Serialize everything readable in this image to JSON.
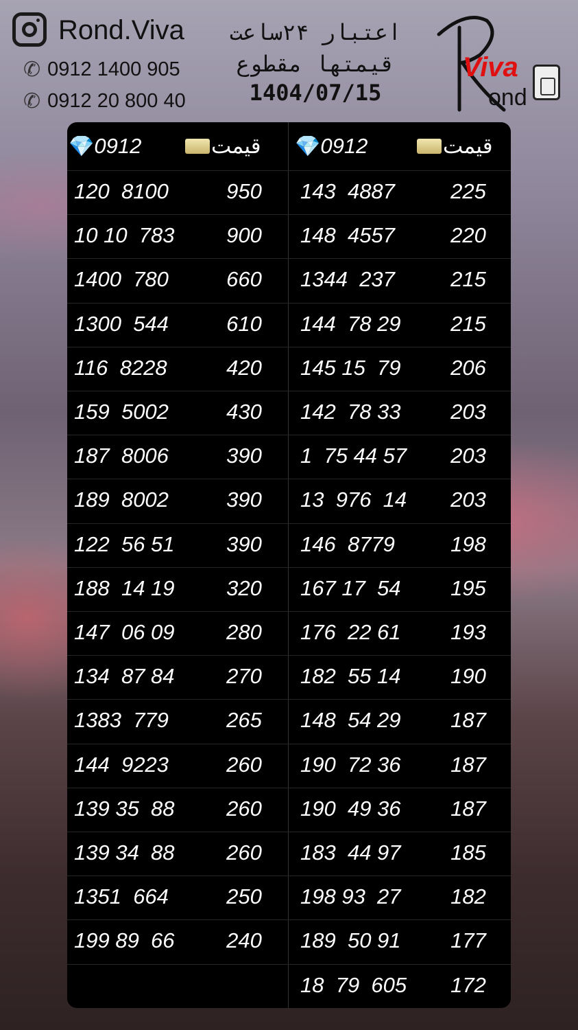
{
  "header": {
    "instagram_handle": "Rond.Viva",
    "phones": [
      "0912 1400 905",
      "0912 20 800 40"
    ],
    "title_lines": [
      "اعتبار ۲۴ساعت",
      "قیمتها مقطوع",
      "1404/07/15"
    ],
    "logo": "Rond Viva"
  },
  "table": {
    "col_number": "0912",
    "col_price": "قیمت",
    "left": [
      [
        "120  8100",
        "950"
      ],
      [
        "10 10  783",
        "900"
      ],
      [
        "1400  780",
        "660"
      ],
      [
        "1300  544",
        "610"
      ],
      [
        "116  8228",
        "420"
      ],
      [
        "159  5002",
        "430"
      ],
      [
        "187  8006",
        "390"
      ],
      [
        "189  8002",
        "390"
      ],
      [
        "122  56 51",
        "390"
      ],
      [
        "188  14 19",
        "320"
      ],
      [
        "147  06 09",
        "280"
      ],
      [
        "134  87 84",
        "270"
      ],
      [
        "1383  779",
        "265"
      ],
      [
        "144  9223",
        "260"
      ],
      [
        "139 35  88",
        "260"
      ],
      [
        "139 34  88",
        "260"
      ],
      [
        "1351  664",
        "250"
      ],
      [
        "199 89  66",
        "240"
      ]
    ],
    "right": [
      [
        "143  4887",
        "225"
      ],
      [
        "148  4557",
        "220"
      ],
      [
        "1344  237",
        "215"
      ],
      [
        "144  78 29",
        "215"
      ],
      [
        "145 15  79",
        "206"
      ],
      [
        "142  78 33",
        "203"
      ],
      [
        "1  75 44 57",
        "203"
      ],
      [
        "13  976  14",
        "203"
      ],
      [
        "146  8779",
        "198"
      ],
      [
        "167 17  54",
        "195"
      ],
      [
        "176  22 61",
        "193"
      ],
      [
        "182  55 14",
        "190"
      ],
      [
        "148  54 29",
        "187"
      ],
      [
        "190  72 36",
        "187"
      ],
      [
        "190  49 36",
        "187"
      ],
      [
        "183  44 97",
        "185"
      ],
      [
        "198 93  27",
        "182"
      ],
      [
        "189  50 91",
        "177"
      ],
      [
        "18  79  605",
        "172"
      ]
    ]
  }
}
